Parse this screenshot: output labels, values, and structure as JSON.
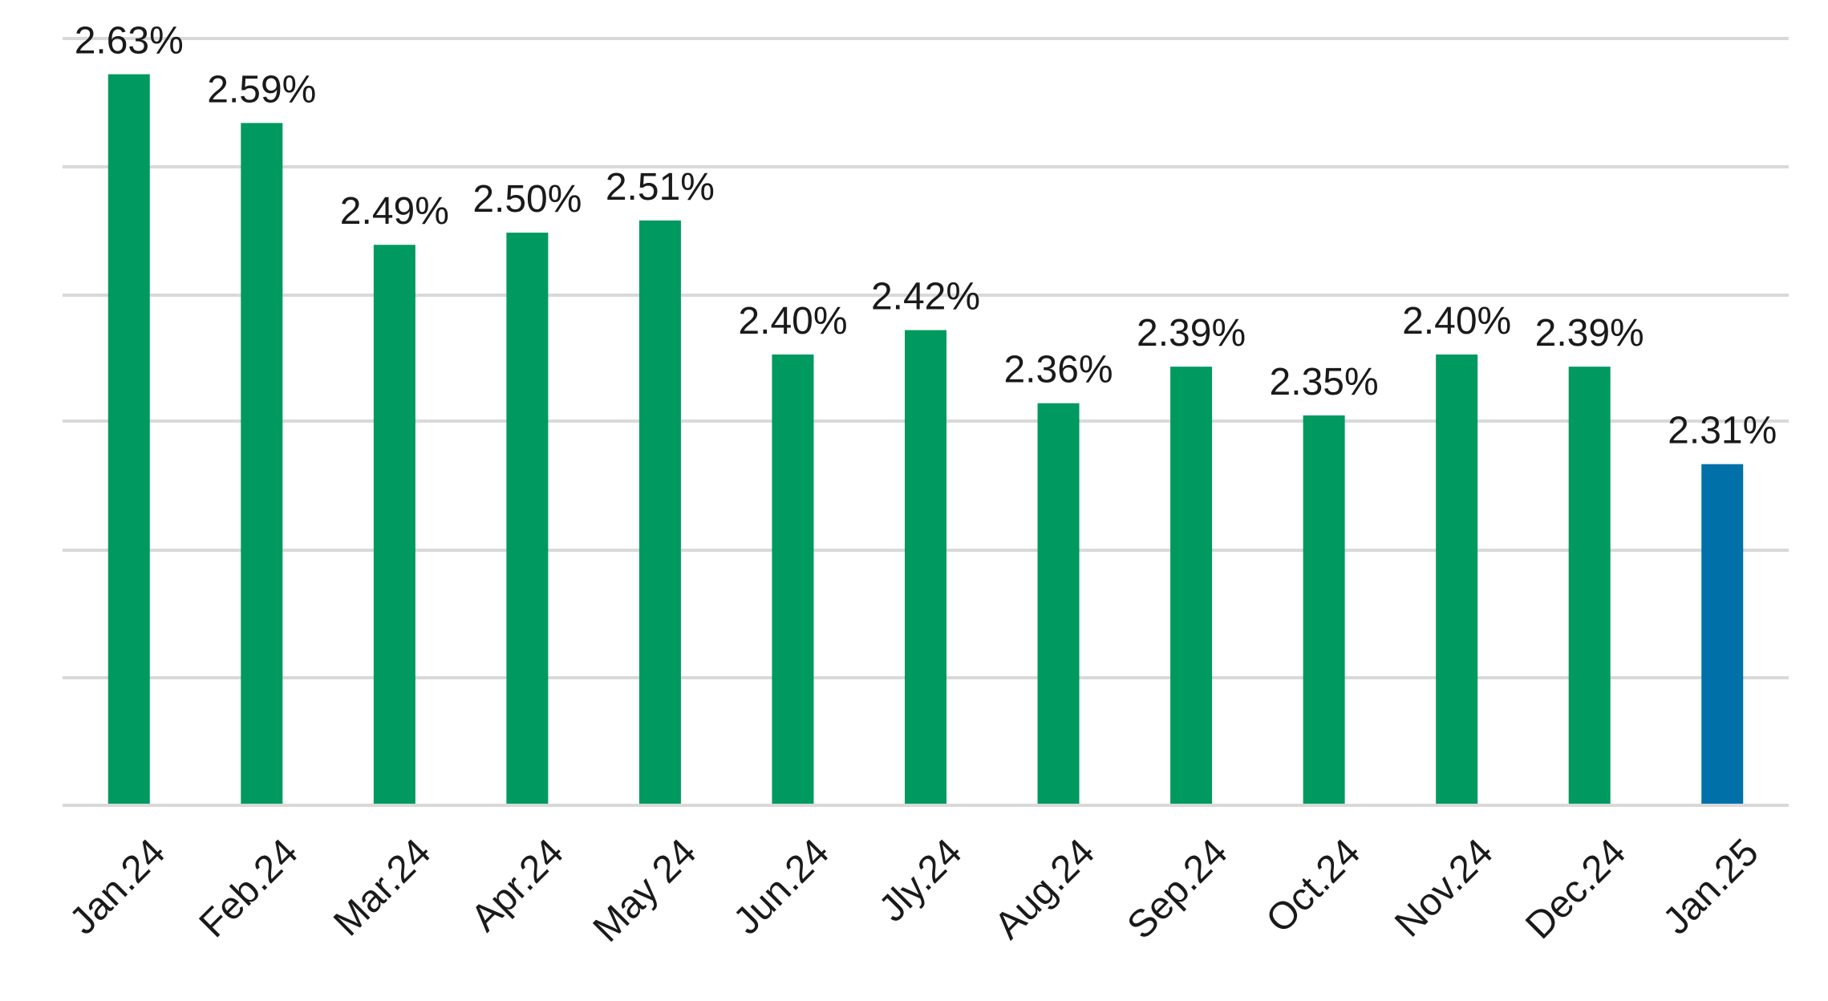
{
  "colors": {
    "default_bar": "#009960",
    "highlight_bar": "#0070a8",
    "gridline": "#d9d9d9",
    "text": "#1a1a1a",
    "background": "#ffffff"
  },
  "chart_data": {
    "type": "bar",
    "title": "",
    "xlabel": "",
    "ylabel": "",
    "ylim": [
      2.03,
      2.66
    ],
    "yticks": [
      2.03,
      2.13,
      2.23,
      2.33,
      2.43,
      2.53,
      2.63
    ],
    "y_tick_labels_shown": false,
    "grid": true,
    "legend": "none",
    "categories": [
      "Jan.24",
      "Feb.24",
      "Mar.24",
      "Apr.24",
      "May 24",
      "Jun.24",
      "Jly.24",
      "Aug.24",
      "Sep.24",
      "Oct.24",
      "Nov.24",
      "Dec.24",
      "Jan.25"
    ],
    "values": [
      2.63,
      2.59,
      2.49,
      2.5,
      2.51,
      2.4,
      2.42,
      2.36,
      2.39,
      2.35,
      2.4,
      2.39,
      2.31
    ],
    "value_labels": [
      "2.63%",
      "2.59%",
      "2.49%",
      "2.50%",
      "2.51%",
      "2.40%",
      "2.42%",
      "2.36%",
      "2.39%",
      "2.35%",
      "2.40%",
      "2.39%",
      "2.31%"
    ],
    "bar_colors": [
      "#009960",
      "#009960",
      "#009960",
      "#009960",
      "#009960",
      "#009960",
      "#009960",
      "#009960",
      "#009960",
      "#009960",
      "#009960",
      "#009960",
      "#0070a8"
    ]
  }
}
